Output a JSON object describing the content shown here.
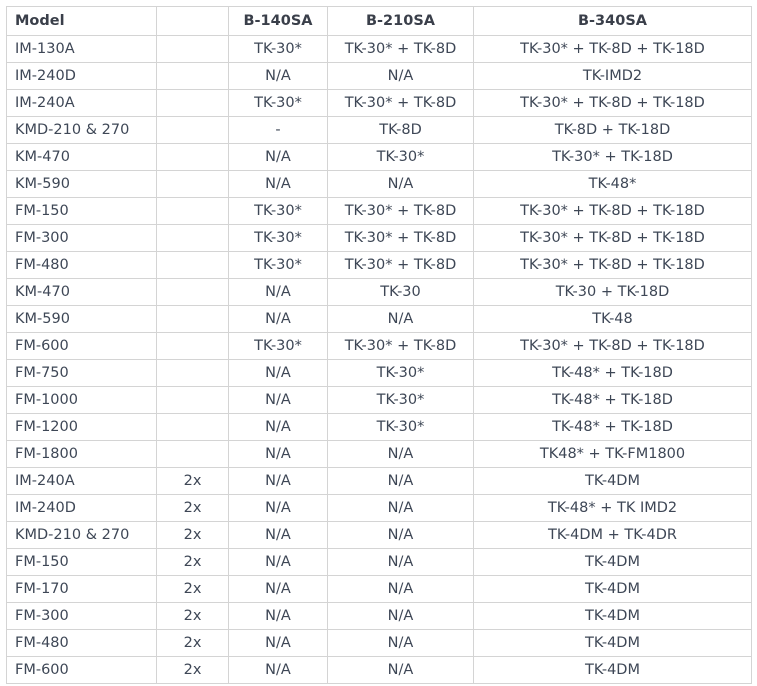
{
  "headers": [
    "Model",
    "",
    "B-140SA",
    "B-210SA",
    "B-340SA"
  ],
  "rows": [
    [
      "IM-130A",
      "",
      "TK-30*",
      "TK-30* + TK-8D",
      "TK-30* + TK-8D + TK-18D"
    ],
    [
      "IM-240D",
      "",
      "N/A",
      "N/A",
      "TK-IMD2"
    ],
    [
      "IM-240A",
      "",
      "TK-30*",
      "TK-30* + TK-8D",
      "TK-30* + TK-8D + TK-18D"
    ],
    [
      "KMD-210 & 270",
      "",
      "-",
      "TK-8D",
      "TK-8D + TK-18D"
    ],
    [
      "KM-470",
      "",
      "N/A",
      "TK-30*",
      "TK-30* + TK-18D"
    ],
    [
      "KM-590",
      "",
      "N/A",
      "N/A",
      "TK-48*"
    ],
    [
      "FM-150",
      "",
      "TK-30*",
      "TK-30* + TK-8D",
      "TK-30* + TK-8D + TK-18D"
    ],
    [
      "FM-300",
      "",
      "TK-30*",
      "TK-30* + TK-8D",
      "TK-30* + TK-8D + TK-18D"
    ],
    [
      "FM-480",
      "",
      "TK-30*",
      "TK-30* + TK-8D",
      "TK-30* + TK-8D + TK-18D"
    ],
    [
      "KM-470",
      "",
      "N/A",
      "TK-30",
      "TK-30 + TK-18D"
    ],
    [
      "KM-590",
      "",
      "N/A",
      "N/A",
      "TK-48"
    ],
    [
      "FM-600",
      "",
      "TK-30*",
      "TK-30* + TK-8D",
      "TK-30* + TK-8D + TK-18D"
    ],
    [
      "FM-750",
      "",
      "N/A",
      "TK-30*",
      "TK-48* + TK-18D"
    ],
    [
      "FM-1000",
      "",
      "N/A",
      "TK-30*",
      "TK-48* + TK-18D"
    ],
    [
      "FM-1200",
      "",
      "N/A",
      "TK-30*",
      "TK-48* + TK-18D"
    ],
    [
      "FM-1800",
      "",
      "N/A",
      "N/A",
      "TK48* + TK-FM1800"
    ],
    [
      "IM-240A",
      "2x",
      "N/A",
      "N/A",
      "TK-4DM"
    ],
    [
      "IM-240D",
      "2x",
      "N/A",
      "N/A",
      "TK-48* + TK IMD2"
    ],
    [
      "KMD-210 & 270",
      "2x",
      "N/A",
      "N/A",
      "TK-4DM + TK-4DR"
    ],
    [
      "FM-150",
      "2x",
      "N/A",
      "N/A",
      "TK-4DM"
    ],
    [
      "FM-170",
      "2x",
      "N/A",
      "N/A",
      "TK-4DM"
    ],
    [
      "FM-300",
      "2x",
      "N/A",
      "N/A",
      "TK-4DM"
    ],
    [
      "FM-480",
      "2x",
      "N/A",
      "N/A",
      "TK-4DM"
    ],
    [
      "FM-600",
      "2x",
      "N/A",
      "N/A",
      "TK-4DM"
    ]
  ]
}
